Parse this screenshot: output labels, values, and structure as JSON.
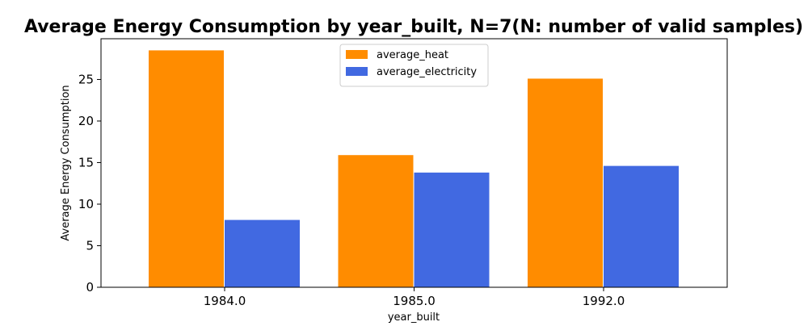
{
  "chart_data": {
    "type": "bar",
    "title": "Average Energy Consumption by year_built, N=7(N: number of valid samples)",
    "xlabel": "year_built",
    "ylabel": "Average Energy Consumption",
    "categories": [
      "1984.0",
      "1985.0",
      "1992.0"
    ],
    "series": [
      {
        "name": "average_heat",
        "values": [
          28.5,
          15.9,
          25.1
        ],
        "color": "#ff8c00"
      },
      {
        "name": "average_electricity",
        "values": [
          8.1,
          13.8,
          14.6
        ],
        "color": "#4169e1"
      }
    ],
    "ylim": [
      0,
      29.9
    ],
    "yticks": [
      0,
      5,
      10,
      15,
      20,
      25
    ],
    "grid": false,
    "legend": "top-center"
  }
}
